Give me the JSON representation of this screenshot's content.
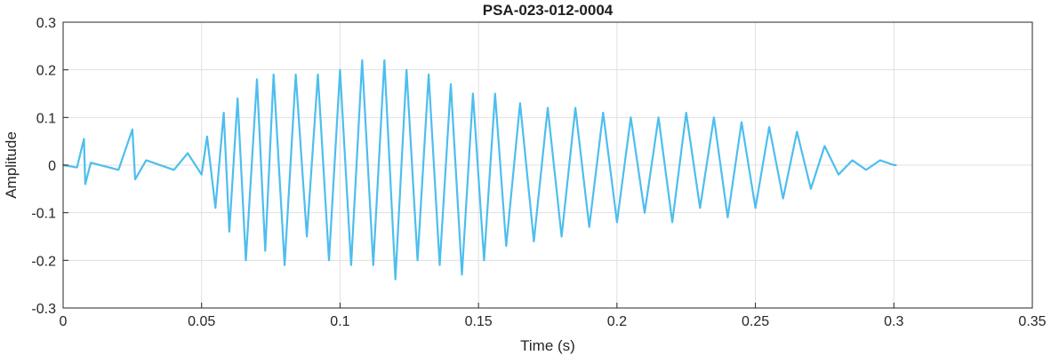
{
  "chart_data": {
    "type": "line",
    "title": "PSA-023-012-0004",
    "xlabel": "Time (s)",
    "ylabel": "Amplitude",
    "xlim": [
      0,
      0.35
    ],
    "ylim": [
      -0.3,
      0.3
    ],
    "x_ticks": [
      0,
      0.05,
      0.1,
      0.15,
      0.2,
      0.25,
      0.3,
      0.35
    ],
    "x_tick_labels": [
      "0",
      "0.05",
      "0.1",
      "0.15",
      "0.2",
      "0.25",
      "0.3",
      "0.35"
    ],
    "y_ticks": [
      0.3,
      0.2,
      0.1,
      0,
      -0.1,
      -0.2,
      -0.3
    ],
    "y_tick_labels": [
      "0.3",
      "0.2",
      "0.1",
      "0",
      "-0.1",
      "-0.2",
      "-0.3"
    ],
    "grid": true,
    "series": [
      {
        "color": "#4DBEEE",
        "x": [
          0,
          0.005,
          0.0075,
          0.008,
          0.01,
          0.02,
          0.025,
          0.026,
          0.03,
          0.04,
          0.045,
          0.05,
          0.052,
          0.055,
          0.058,
          0.06,
          0.063,
          0.066,
          0.07,
          0.073,
          0.076,
          0.08,
          0.084,
          0.088,
          0.092,
          0.096,
          0.1,
          0.104,
          0.108,
          0.112,
          0.116,
          0.12,
          0.124,
          0.128,
          0.132,
          0.136,
          0.14,
          0.144,
          0.148,
          0.152,
          0.156,
          0.16,
          0.165,
          0.17,
          0.175,
          0.18,
          0.185,
          0.19,
          0.195,
          0.2,
          0.205,
          0.21,
          0.215,
          0.22,
          0.225,
          0.23,
          0.235,
          0.24,
          0.245,
          0.25,
          0.255,
          0.26,
          0.265,
          0.27,
          0.275,
          0.28,
          0.285,
          0.29,
          0.295,
          0.3,
          0.301
        ],
        "y": [
          0,
          -0.005,
          0.055,
          -0.04,
          0.005,
          -0.01,
          0.075,
          -0.03,
          0.01,
          -0.01,
          0.025,
          -0.02,
          0.06,
          -0.09,
          0.11,
          -0.14,
          0.14,
          -0.2,
          0.18,
          -0.18,
          0.19,
          -0.21,
          0.19,
          -0.15,
          0.19,
          -0.2,
          0.2,
          -0.21,
          0.22,
          -0.21,
          0.22,
          -0.24,
          0.2,
          -0.2,
          0.19,
          -0.21,
          0.17,
          -0.23,
          0.15,
          -0.2,
          0.15,
          -0.17,
          0.13,
          -0.16,
          0.12,
          -0.15,
          0.12,
          -0.13,
          0.11,
          -0.12,
          0.1,
          -0.1,
          0.1,
          -0.12,
          0.11,
          -0.09,
          0.1,
          -0.11,
          0.09,
          -0.09,
          0.08,
          -0.07,
          0.07,
          -0.05,
          0.04,
          -0.02,
          0.01,
          -0.01,
          0.01,
          0.0,
          0.0
        ]
      }
    ]
  }
}
